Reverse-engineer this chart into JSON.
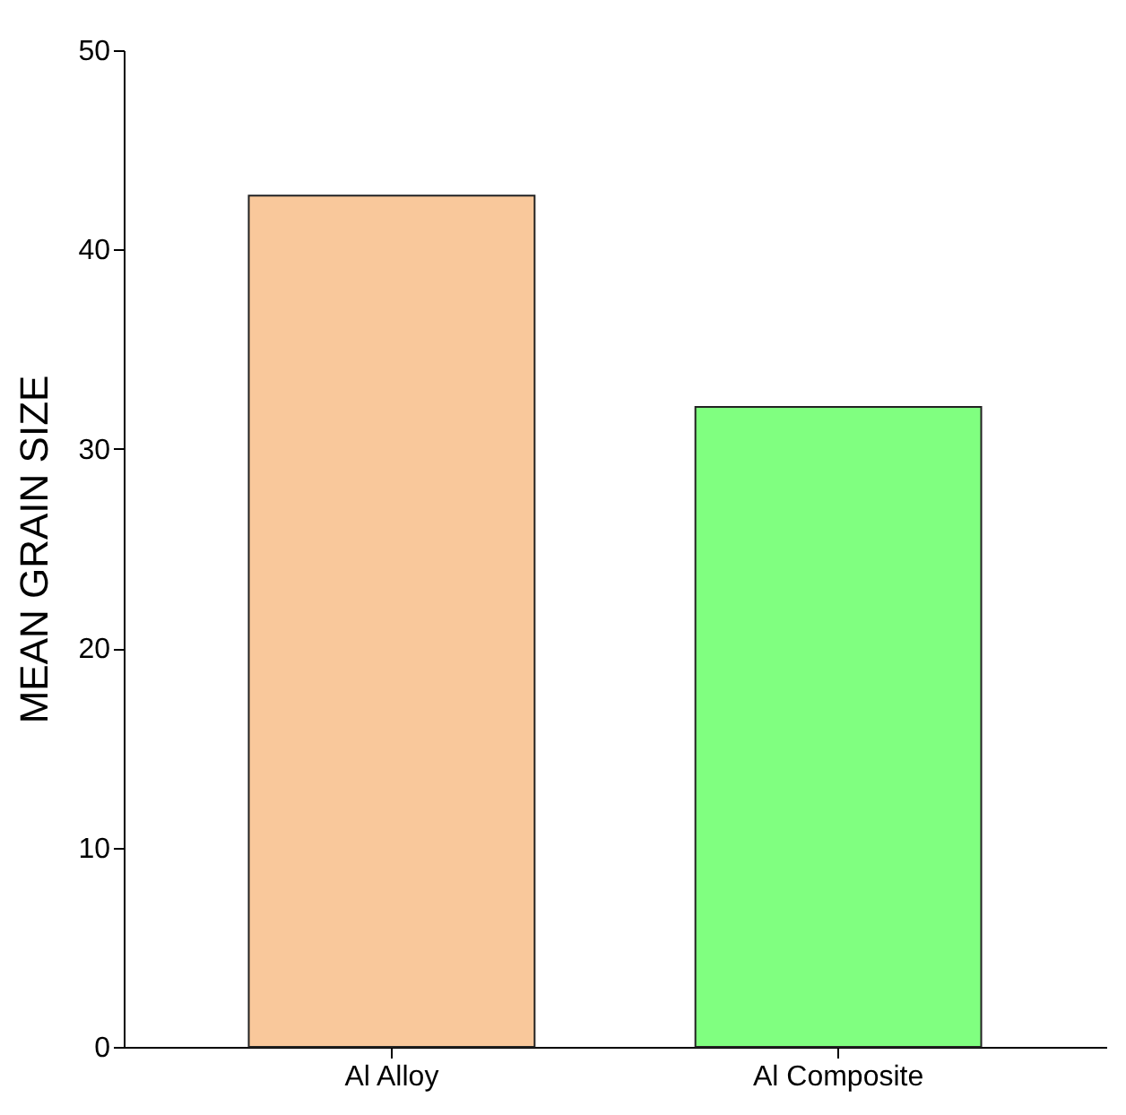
{
  "chart_data": {
    "type": "bar",
    "ylabel": "MEAN GRAIN SIZE",
    "categories": [
      "Al Alloy",
      "Al Composite"
    ],
    "values": [
      42.7,
      32.1
    ],
    "colors": [
      "#f9c89b",
      "#80ff80"
    ],
    "ylim": [
      0,
      50
    ],
    "yticks": [
      0,
      10,
      20,
      30,
      40,
      50
    ],
    "grid": false
  }
}
